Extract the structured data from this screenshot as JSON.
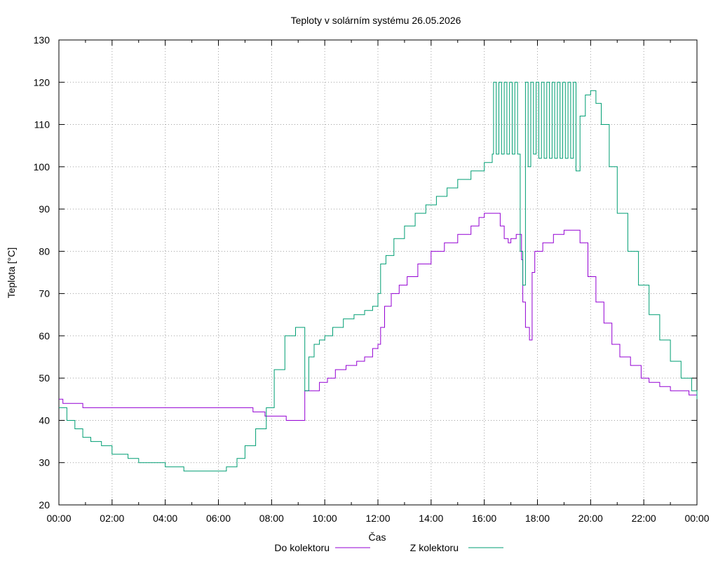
{
  "chart_data": {
    "type": "line",
    "title": "Teploty v solárním systému 26.05.2026",
    "xlabel": "Čas",
    "ylabel": "Teplota [°C]",
    "ylim": [
      20,
      130
    ],
    "xlim": [
      0,
      24
    ],
    "grid": true,
    "legend": "bottom",
    "y_ticks": [
      "20",
      "30",
      "40",
      "50",
      "60",
      "70",
      "80",
      "90",
      "100",
      "110",
      "120",
      "130"
    ],
    "x_ticks": [
      "00:00",
      "02:00",
      "04:00",
      "06:00",
      "08:00",
      "10:00",
      "12:00",
      "14:00",
      "16:00",
      "18:00",
      "20:00",
      "22:00",
      "00:00"
    ],
    "series": [
      {
        "name": "Do kolektoru",
        "color": "#9400d3",
        "points": [
          [
            0,
            45
          ],
          [
            0.1,
            45
          ],
          [
            0.15,
            44
          ],
          [
            0.85,
            44
          ],
          [
            0.9,
            43
          ],
          [
            3,
            43
          ],
          [
            6,
            43
          ],
          [
            7.2,
            43
          ],
          [
            7.3,
            42
          ],
          [
            7.6,
            42
          ],
          [
            7.75,
            41
          ],
          [
            8.5,
            41
          ],
          [
            8.55,
            40
          ],
          [
            9.2,
            40
          ],
          [
            9.25,
            47
          ],
          [
            9.6,
            47
          ],
          [
            9.8,
            49
          ],
          [
            10.1,
            50
          ],
          [
            10.4,
            52
          ],
          [
            10.8,
            53
          ],
          [
            11.2,
            54
          ],
          [
            11.5,
            55
          ],
          [
            11.8,
            57
          ],
          [
            12.0,
            58
          ],
          [
            12.1,
            62
          ],
          [
            12.25,
            67
          ],
          [
            12.5,
            70
          ],
          [
            12.8,
            72
          ],
          [
            13.1,
            74
          ],
          [
            13.5,
            77
          ],
          [
            14.0,
            80
          ],
          [
            14.5,
            82
          ],
          [
            15.0,
            84
          ],
          [
            15.5,
            86
          ],
          [
            15.8,
            88
          ],
          [
            16.0,
            89
          ],
          [
            16.5,
            89
          ],
          [
            16.6,
            86
          ],
          [
            16.75,
            83
          ],
          [
            16.9,
            82
          ],
          [
            17.0,
            83
          ],
          [
            17.2,
            84
          ],
          [
            17.35,
            84
          ],
          [
            17.4,
            78
          ],
          [
            17.45,
            68
          ],
          [
            17.55,
            62
          ],
          [
            17.7,
            59
          ],
          [
            17.8,
            75
          ],
          [
            17.9,
            80
          ],
          [
            18.2,
            82
          ],
          [
            18.6,
            84
          ],
          [
            19.0,
            85
          ],
          [
            19.4,
            85
          ],
          [
            19.6,
            82
          ],
          [
            19.9,
            74
          ],
          [
            20.2,
            68
          ],
          [
            20.5,
            63
          ],
          [
            20.8,
            58
          ],
          [
            21.1,
            55
          ],
          [
            21.5,
            53
          ],
          [
            21.9,
            50
          ],
          [
            22.2,
            49
          ],
          [
            22.6,
            48
          ],
          [
            23.0,
            47
          ],
          [
            23.4,
            47
          ],
          [
            23.7,
            46
          ],
          [
            24.0,
            45
          ]
        ]
      },
      {
        "name": "Z kolektoru",
        "color": "#009e73",
        "points": [
          [
            0,
            43
          ],
          [
            0.3,
            40
          ],
          [
            0.6,
            38
          ],
          [
            0.9,
            36
          ],
          [
            1.2,
            35
          ],
          [
            1.6,
            34
          ],
          [
            2.0,
            32
          ],
          [
            2.6,
            31
          ],
          [
            3.0,
            30
          ],
          [
            3.6,
            30
          ],
          [
            4.0,
            29
          ],
          [
            4.6,
            29
          ],
          [
            4.7,
            28
          ],
          [
            5.0,
            28
          ],
          [
            5.5,
            28
          ],
          [
            6.0,
            28
          ],
          [
            6.3,
            29
          ],
          [
            6.7,
            31
          ],
          [
            7.0,
            34
          ],
          [
            7.4,
            38
          ],
          [
            7.8,
            43
          ],
          [
            8.1,
            52
          ],
          [
            8.5,
            60
          ],
          [
            8.9,
            62
          ],
          [
            9.2,
            62
          ],
          [
            9.25,
            47
          ],
          [
            9.4,
            55
          ],
          [
            9.6,
            58
          ],
          [
            9.8,
            59
          ],
          [
            10.0,
            60
          ],
          [
            10.3,
            62
          ],
          [
            10.7,
            64
          ],
          [
            11.1,
            65
          ],
          [
            11.5,
            66
          ],
          [
            11.8,
            67
          ],
          [
            12.0,
            70
          ],
          [
            12.1,
            77
          ],
          [
            12.3,
            79
          ],
          [
            12.6,
            83
          ],
          [
            13.0,
            86
          ],
          [
            13.4,
            89
          ],
          [
            13.8,
            91
          ],
          [
            14.2,
            93
          ],
          [
            14.6,
            95
          ],
          [
            15.0,
            97
          ],
          [
            15.5,
            99
          ],
          [
            16.0,
            101
          ],
          [
            16.3,
            103
          ],
          [
            16.35,
            120
          ],
          [
            16.45,
            103
          ],
          [
            16.55,
            120
          ],
          [
            16.65,
            103
          ],
          [
            16.75,
            120
          ],
          [
            16.85,
            103
          ],
          [
            16.95,
            120
          ],
          [
            17.05,
            103
          ],
          [
            17.15,
            120
          ],
          [
            17.25,
            103
          ],
          [
            17.35,
            80
          ],
          [
            17.45,
            72
          ],
          [
            17.55,
            120
          ],
          [
            17.65,
            100
          ],
          [
            17.75,
            120
          ],
          [
            17.85,
            103
          ],
          [
            17.95,
            120
          ],
          [
            18.05,
            102
          ],
          [
            18.15,
            120
          ],
          [
            18.25,
            102
          ],
          [
            18.35,
            120
          ],
          [
            18.45,
            102
          ],
          [
            18.55,
            120
          ],
          [
            18.65,
            102
          ],
          [
            18.75,
            120
          ],
          [
            18.85,
            102
          ],
          [
            18.95,
            120
          ],
          [
            19.05,
            102
          ],
          [
            19.15,
            120
          ],
          [
            19.25,
            102
          ],
          [
            19.35,
            120
          ],
          [
            19.45,
            99
          ],
          [
            19.6,
            112
          ],
          [
            19.8,
            117
          ],
          [
            20.0,
            118
          ],
          [
            20.2,
            115
          ],
          [
            20.4,
            110
          ],
          [
            20.7,
            100
          ],
          [
            21.0,
            89
          ],
          [
            21.4,
            80
          ],
          [
            21.8,
            72
          ],
          [
            22.2,
            65
          ],
          [
            22.6,
            59
          ],
          [
            23.0,
            54
          ],
          [
            23.4,
            50
          ],
          [
            23.8,
            47
          ],
          [
            24.0,
            45
          ]
        ]
      }
    ]
  }
}
